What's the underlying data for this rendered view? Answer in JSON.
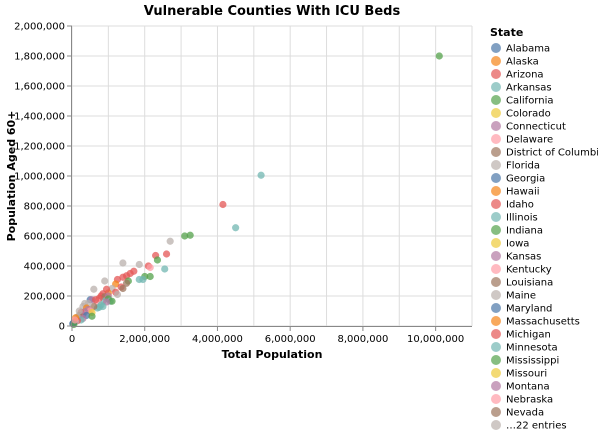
{
  "chart_data": {
    "type": "scatter",
    "title": "Vulnerable Counties With ICU Beds",
    "xlabel": "Total Population",
    "ylabel": "Population Aged 60+",
    "xlim": [
      0,
      11000000
    ],
    "ylim": [
      0,
      2000000
    ],
    "x_ticks": [
      0,
      2000000,
      4000000,
      6000000,
      8000000,
      10000000
    ],
    "x_tick_labels": [
      "0",
      "2,000,000",
      "4,000,000",
      "6,000,000",
      "8,000,000",
      "10,000,000"
    ],
    "y_ticks": [
      0,
      200000,
      400000,
      600000,
      800000,
      1000000,
      1200000,
      1400000,
      1600000,
      1800000,
      2000000
    ],
    "y_tick_labels": [
      "0",
      "200,000",
      "400,000",
      "600,000",
      "800,000",
      "1,000,000",
      "1,200,000",
      "1,400,000",
      "1,600,000",
      "1,800,000",
      "2,000,000"
    ],
    "grid": true,
    "legend": {
      "title": "State",
      "placement": "right",
      "more_label": "…22 entries",
      "entries": [
        {
          "name": "Alabama",
          "color": "#4c78a8"
        },
        {
          "name": "Alaska",
          "color": "#f58518"
        },
        {
          "name": "Arizona",
          "color": "#e45756"
        },
        {
          "name": "Arkansas",
          "color": "#72b7b2"
        },
        {
          "name": "California",
          "color": "#54a24b"
        },
        {
          "name": "Colorado",
          "color": "#eeca3b"
        },
        {
          "name": "Connecticut",
          "color": "#b279a2"
        },
        {
          "name": "Delaware",
          "color": "#ff9da6"
        },
        {
          "name": "District of Columbia",
          "color": "#9d755d"
        },
        {
          "name": "Florida",
          "color": "#bab0ac"
        },
        {
          "name": "Georgia",
          "color": "#4c78a8"
        },
        {
          "name": "Hawaii",
          "color": "#f58518"
        },
        {
          "name": "Idaho",
          "color": "#e45756"
        },
        {
          "name": "Illinois",
          "color": "#72b7b2"
        },
        {
          "name": "Indiana",
          "color": "#54a24b"
        },
        {
          "name": "Iowa",
          "color": "#eeca3b"
        },
        {
          "name": "Kansas",
          "color": "#b279a2"
        },
        {
          "name": "Kentucky",
          "color": "#ff9da6"
        },
        {
          "name": "Louisiana",
          "color": "#9d755d"
        },
        {
          "name": "Maine",
          "color": "#bab0ac"
        },
        {
          "name": "Maryland",
          "color": "#4c78a8"
        },
        {
          "name": "Massachusetts",
          "color": "#f58518"
        },
        {
          "name": "Michigan",
          "color": "#e45756"
        },
        {
          "name": "Minnesota",
          "color": "#72b7b2"
        },
        {
          "name": "Mississippi",
          "color": "#54a24b"
        },
        {
          "name": "Missouri",
          "color": "#eeca3b"
        },
        {
          "name": "Montana",
          "color": "#b279a2"
        },
        {
          "name": "Nebraska",
          "color": "#ff9da6"
        },
        {
          "name": "Nevada",
          "color": "#9d755d"
        }
      ]
    },
    "points": [
      {
        "x": 10100000,
        "y": 1800000,
        "color": "#54a24b"
      },
      {
        "x": 5200000,
        "y": 1005000,
        "color": "#72b7b2"
      },
      {
        "x": 4150000,
        "y": 810000,
        "color": "#e45756"
      },
      {
        "x": 4500000,
        "y": 655000,
        "color": "#72b7b2"
      },
      {
        "x": 3250000,
        "y": 605000,
        "color": "#54a24b"
      },
      {
        "x": 3100000,
        "y": 600000,
        "color": "#54a24b"
      },
      {
        "x": 2700000,
        "y": 565000,
        "color": "#bab0ac"
      },
      {
        "x": 2600000,
        "y": 480000,
        "color": "#e45756"
      },
      {
        "x": 2300000,
        "y": 470000,
        "color": "#e45756"
      },
      {
        "x": 2350000,
        "y": 440000,
        "color": "#54a24b"
      },
      {
        "x": 1400000,
        "y": 420000,
        "color": "#bab0ac"
      },
      {
        "x": 1850000,
        "y": 410000,
        "color": "#bab0ac"
      },
      {
        "x": 2100000,
        "y": 400000,
        "color": "#e45756"
      },
      {
        "x": 2150000,
        "y": 390000,
        "color": "#ff9da6"
      },
      {
        "x": 2550000,
        "y": 380000,
        "color": "#72b7b2"
      },
      {
        "x": 1700000,
        "y": 365000,
        "color": "#e45756"
      },
      {
        "x": 1600000,
        "y": 350000,
        "color": "#e45756"
      },
      {
        "x": 1500000,
        "y": 335000,
        "color": "#e45756"
      },
      {
        "x": 1400000,
        "y": 325000,
        "color": "#e45756"
      },
      {
        "x": 2000000,
        "y": 330000,
        "color": "#54a24b"
      },
      {
        "x": 2150000,
        "y": 330000,
        "color": "#54a24b"
      },
      {
        "x": 1850000,
        "y": 310000,
        "color": "#72b7b2"
      },
      {
        "x": 1950000,
        "y": 310000,
        "color": "#72b7b2"
      },
      {
        "x": 1250000,
        "y": 310000,
        "color": "#e45756"
      },
      {
        "x": 1550000,
        "y": 300000,
        "color": "#54a24b"
      },
      {
        "x": 1500000,
        "y": 285000,
        "color": "#9d755d"
      },
      {
        "x": 1200000,
        "y": 280000,
        "color": "#f58518"
      },
      {
        "x": 1350000,
        "y": 260000,
        "color": "#e45756"
      },
      {
        "x": 1400000,
        "y": 250000,
        "color": "#9d755d"
      },
      {
        "x": 900000,
        "y": 300000,
        "color": "#bab0ac"
      },
      {
        "x": 1100000,
        "y": 250000,
        "color": "#bab0ac"
      },
      {
        "x": 1200000,
        "y": 225000,
        "color": "#e45756"
      },
      {
        "x": 1000000,
        "y": 220000,
        "color": "#f58518"
      },
      {
        "x": 950000,
        "y": 245000,
        "color": "#e45756"
      },
      {
        "x": 850000,
        "y": 215000,
        "color": "#e45756"
      },
      {
        "x": 1250000,
        "y": 210000,
        "color": "#bab0ac"
      },
      {
        "x": 800000,
        "y": 200000,
        "color": "#e45756"
      },
      {
        "x": 900000,
        "y": 195000,
        "color": "#9d755d"
      },
      {
        "x": 1000000,
        "y": 200000,
        "color": "#b279a2"
      },
      {
        "x": 600000,
        "y": 245000,
        "color": "#bab0ac"
      },
      {
        "x": 1000000,
        "y": 180000,
        "color": "#54a24b"
      },
      {
        "x": 1050000,
        "y": 165000,
        "color": "#72b7b2"
      },
      {
        "x": 1100000,
        "y": 165000,
        "color": "#54a24b"
      },
      {
        "x": 850000,
        "y": 165000,
        "color": "#72b7b2"
      },
      {
        "x": 950000,
        "y": 160000,
        "color": "#b279a2"
      },
      {
        "x": 750000,
        "y": 185000,
        "color": "#e45756"
      },
      {
        "x": 700000,
        "y": 160000,
        "color": "#ff9da6"
      },
      {
        "x": 500000,
        "y": 175000,
        "color": "#4c78a8"
      },
      {
        "x": 550000,
        "y": 175000,
        "color": "#b279a2"
      },
      {
        "x": 650000,
        "y": 175000,
        "color": "#e45756"
      },
      {
        "x": 800000,
        "y": 140000,
        "color": "#72b7b2"
      },
      {
        "x": 850000,
        "y": 130000,
        "color": "#72b7b2"
      },
      {
        "x": 750000,
        "y": 125000,
        "color": "#72b7b2"
      },
      {
        "x": 700000,
        "y": 120000,
        "color": "#72b7b2"
      },
      {
        "x": 600000,
        "y": 130000,
        "color": "#9d755d"
      },
      {
        "x": 450000,
        "y": 150000,
        "color": "#bab0ac"
      },
      {
        "x": 350000,
        "y": 150000,
        "color": "#bab0ac"
      },
      {
        "x": 300000,
        "y": 130000,
        "color": "#bab0ac"
      },
      {
        "x": 400000,
        "y": 120000,
        "color": "#f58518"
      },
      {
        "x": 450000,
        "y": 110000,
        "color": "#b279a2"
      },
      {
        "x": 500000,
        "y": 100000,
        "color": "#ff9da6"
      },
      {
        "x": 550000,
        "y": 90000,
        "color": "#eeca3b"
      },
      {
        "x": 350000,
        "y": 95000,
        "color": "#b279a2"
      },
      {
        "x": 250000,
        "y": 90000,
        "color": "#e45756"
      },
      {
        "x": 300000,
        "y": 75000,
        "color": "#b279a2"
      },
      {
        "x": 400000,
        "y": 70000,
        "color": "#4c78a8"
      },
      {
        "x": 550000,
        "y": 65000,
        "color": "#54a24b"
      },
      {
        "x": 200000,
        "y": 70000,
        "color": "#9d755d"
      },
      {
        "x": 150000,
        "y": 60000,
        "color": "#bab0ac"
      },
      {
        "x": 300000,
        "y": 50000,
        "color": "#b279a2"
      },
      {
        "x": 250000,
        "y": 40000,
        "color": "#72b7b2"
      },
      {
        "x": 150000,
        "y": 35000,
        "color": "#e45756"
      },
      {
        "x": 100000,
        "y": 30000,
        "color": "#bab0ac"
      },
      {
        "x": 60000,
        "y": 25000,
        "color": "#b279a2"
      },
      {
        "x": 40000,
        "y": 20000,
        "color": "#4c78a8"
      },
      {
        "x": 20000,
        "y": 15000,
        "color": "#4c78a8"
      },
      {
        "x": 50000,
        "y": 10000,
        "color": "#54a24b"
      },
      {
        "x": 100000,
        "y": 55000,
        "color": "#f58518"
      },
      {
        "x": 80000,
        "y": 40000,
        "color": "#ff9da6"
      },
      {
        "x": 200000,
        "y": 100000,
        "color": "#bab0ac"
      }
    ]
  }
}
